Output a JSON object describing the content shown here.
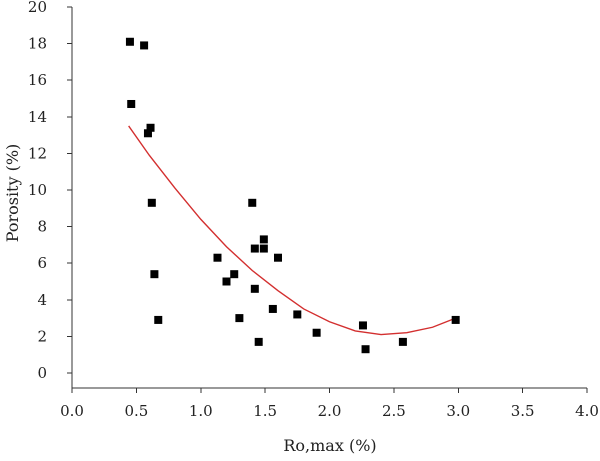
{
  "chart_data": {
    "type": "scatter",
    "title": "",
    "xlabel": "Ro,max (%)",
    "ylabel": "Porosity (%)",
    "xlim": [
      0,
      4
    ],
    "ylim": [
      0,
      20
    ],
    "xticks": [
      0.0,
      0.5,
      1.0,
      1.5,
      2.0,
      2.5,
      3.0,
      3.5,
      4.0
    ],
    "xtick_labels": [
      "0.0",
      "0.5",
      "1.0",
      "1.5",
      "2.0",
      "2.5",
      "3.0",
      "3.5",
      "4.0"
    ],
    "yticks": [
      0,
      2,
      4,
      6,
      8,
      10,
      12,
      14,
      16,
      18,
      20
    ],
    "ytick_labels": [
      "0",
      "2",
      "4",
      "6",
      "8",
      "10",
      "12",
      "14",
      "16",
      "18",
      "20"
    ],
    "grid": false,
    "series": [
      {
        "type": "scatter",
        "marker": "square",
        "color": "#000000",
        "points": [
          [
            0.45,
            18.1
          ],
          [
            0.56,
            17.9
          ],
          [
            0.46,
            14.7
          ],
          [
            0.61,
            13.4
          ],
          [
            0.59,
            13.1
          ],
          [
            0.62,
            9.3
          ],
          [
            0.64,
            5.4
          ],
          [
            0.67,
            2.9
          ],
          [
            1.13,
            6.3
          ],
          [
            1.2,
            5.0
          ],
          [
            1.26,
            5.4
          ],
          [
            1.3,
            3.0
          ],
          [
            1.4,
            9.3
          ],
          [
            1.42,
            6.8
          ],
          [
            1.42,
            4.6
          ],
          [
            1.45,
            1.7
          ],
          [
            1.49,
            7.3
          ],
          [
            1.49,
            6.8
          ],
          [
            1.56,
            3.5
          ],
          [
            1.6,
            6.3
          ],
          [
            1.75,
            3.2
          ],
          [
            1.9,
            2.2
          ],
          [
            2.26,
            2.6
          ],
          [
            2.28,
            1.3
          ],
          [
            2.57,
            1.7
          ],
          [
            2.98,
            2.9
          ]
        ]
      },
      {
        "type": "line",
        "color": "#d32f2f",
        "points": [
          [
            0.44,
            13.5
          ],
          [
            0.6,
            11.9
          ],
          [
            0.8,
            10.1
          ],
          [
            1.0,
            8.4
          ],
          [
            1.2,
            6.9
          ],
          [
            1.4,
            5.6
          ],
          [
            1.6,
            4.5
          ],
          [
            1.8,
            3.5
          ],
          [
            2.0,
            2.8
          ],
          [
            2.2,
            2.3
          ],
          [
            2.4,
            2.1
          ],
          [
            2.6,
            2.2
          ],
          [
            2.8,
            2.5
          ],
          [
            2.98,
            3.0
          ]
        ]
      }
    ]
  }
}
